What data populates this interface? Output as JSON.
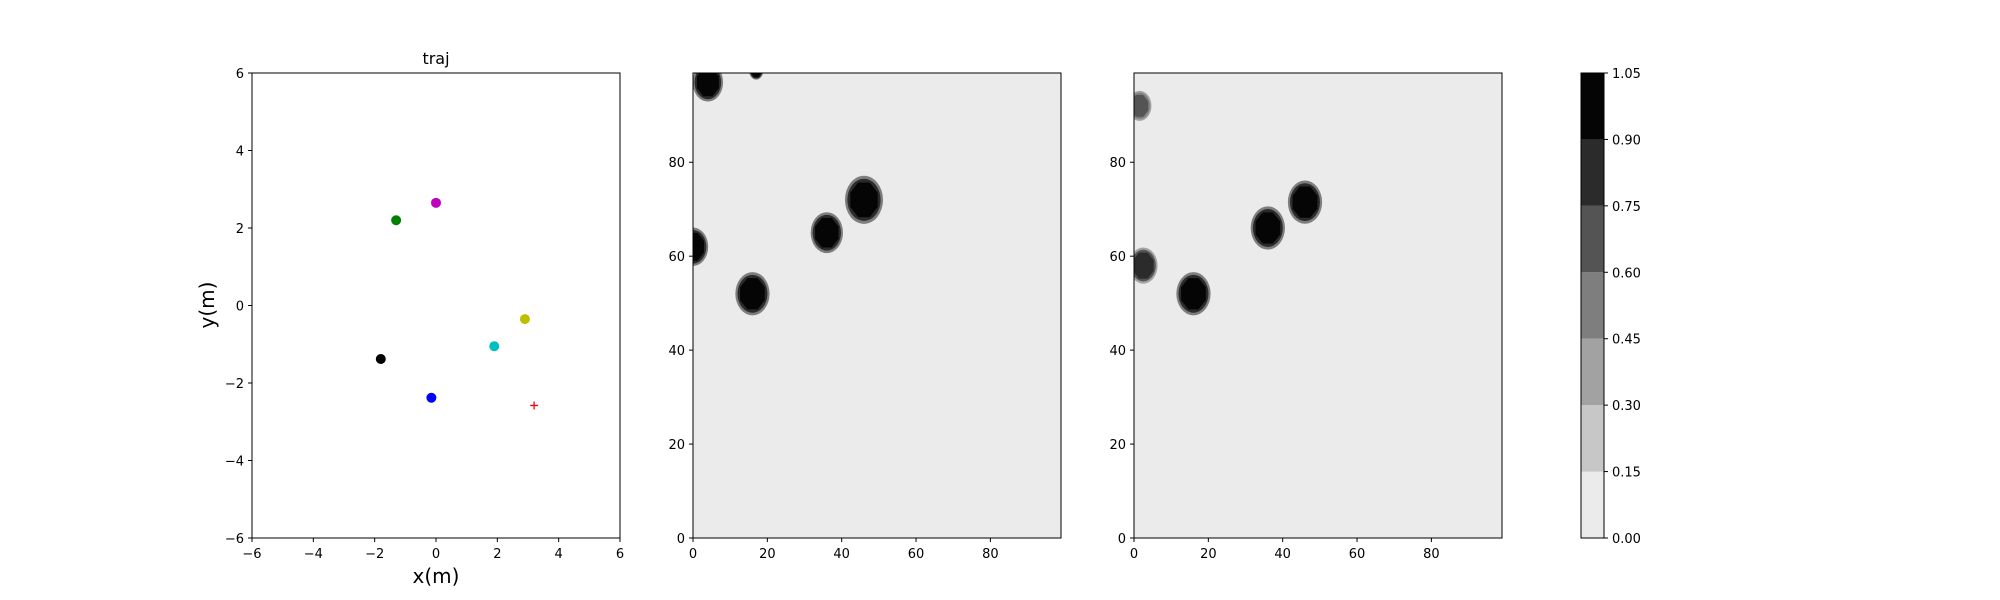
{
  "chart_data": [
    {
      "type": "scatter",
      "title": "traj",
      "xlabel": "x(m)",
      "ylabel": "y(m)",
      "xlim": [
        -6,
        6
      ],
      "ylim": [
        -6,
        6
      ],
      "xticks": [
        -6,
        -4,
        -2,
        0,
        2,
        4,
        6
      ],
      "yticks": [
        -6,
        -4,
        -2,
        0,
        2,
        4,
        6
      ],
      "grid": false,
      "points": [
        {
          "x": -1.3,
          "y": 2.2,
          "color": "#008000",
          "marker": "circle"
        },
        {
          "x": 0.0,
          "y": 2.65,
          "color": "#bf00bf",
          "marker": "circle"
        },
        {
          "x": 2.9,
          "y": -0.35,
          "color": "#bfbf00",
          "marker": "circle"
        },
        {
          "x": 1.9,
          "y": -1.05,
          "color": "#00bfbf",
          "marker": "circle"
        },
        {
          "x": -1.8,
          "y": -1.38,
          "color": "#000000",
          "marker": "circle"
        },
        {
          "x": -0.15,
          "y": -2.38,
          "color": "#0000ff",
          "marker": "circle"
        },
        {
          "x": 3.2,
          "y": -2.58,
          "color": "#ff0000",
          "marker": "plus"
        }
      ]
    },
    {
      "type": "heatmap",
      "xlim": [
        0,
        99
      ],
      "ylim": [
        0,
        99
      ],
      "xticks": [
        0,
        20,
        40,
        60,
        80
      ],
      "yticks": [
        0,
        20,
        40,
        60,
        80
      ],
      "background_value": 0.05,
      "blobs": [
        {
          "x": 4,
          "y": 97,
          "r": 3.2,
          "value": 1.0
        },
        {
          "x": 17,
          "y": 99.5,
          "r": 1.5,
          "value": 1.0
        },
        {
          "x": 0,
          "y": 62,
          "r": 3.2,
          "value": 1.0
        },
        {
          "x": 16,
          "y": 52,
          "r": 3.6,
          "value": 1.0
        },
        {
          "x": 36,
          "y": 65,
          "r": 3.4,
          "value": 1.0
        },
        {
          "x": 46,
          "y": 72,
          "r": 4.0,
          "value": 1.0
        }
      ]
    },
    {
      "type": "heatmap",
      "xlim": [
        0,
        99
      ],
      "ylim": [
        0,
        99
      ],
      "xticks": [
        0,
        20,
        40,
        60,
        80
      ],
      "yticks": [
        0,
        20,
        40,
        60,
        80
      ],
      "background_value": 0.05,
      "blobs": [
        {
          "x": 1.5,
          "y": 92,
          "r": 2.5,
          "value": 0.7
        },
        {
          "x": 2.5,
          "y": 58,
          "r": 3.0,
          "value": 0.85
        },
        {
          "x": 16,
          "y": 52,
          "r": 3.6,
          "value": 1.0
        },
        {
          "x": 36,
          "y": 66,
          "r": 3.6,
          "value": 1.0
        },
        {
          "x": 46,
          "y": 71.5,
          "r": 3.6,
          "value": 1.0
        }
      ]
    },
    {
      "type": "colorbar",
      "levels": [
        0.0,
        0.15,
        0.3,
        0.45,
        0.6,
        0.75,
        0.9,
        1.05
      ],
      "tick_labels": [
        "0.00",
        "0.15",
        "0.30",
        "0.45",
        "0.60",
        "0.75",
        "0.90",
        "1.05"
      ],
      "colors": [
        "#ebebeb",
        "#c7c7c7",
        "#a2a2a2",
        "#7e7e7e",
        "#545454",
        "#2b2b2b",
        "#050505"
      ]
    }
  ]
}
